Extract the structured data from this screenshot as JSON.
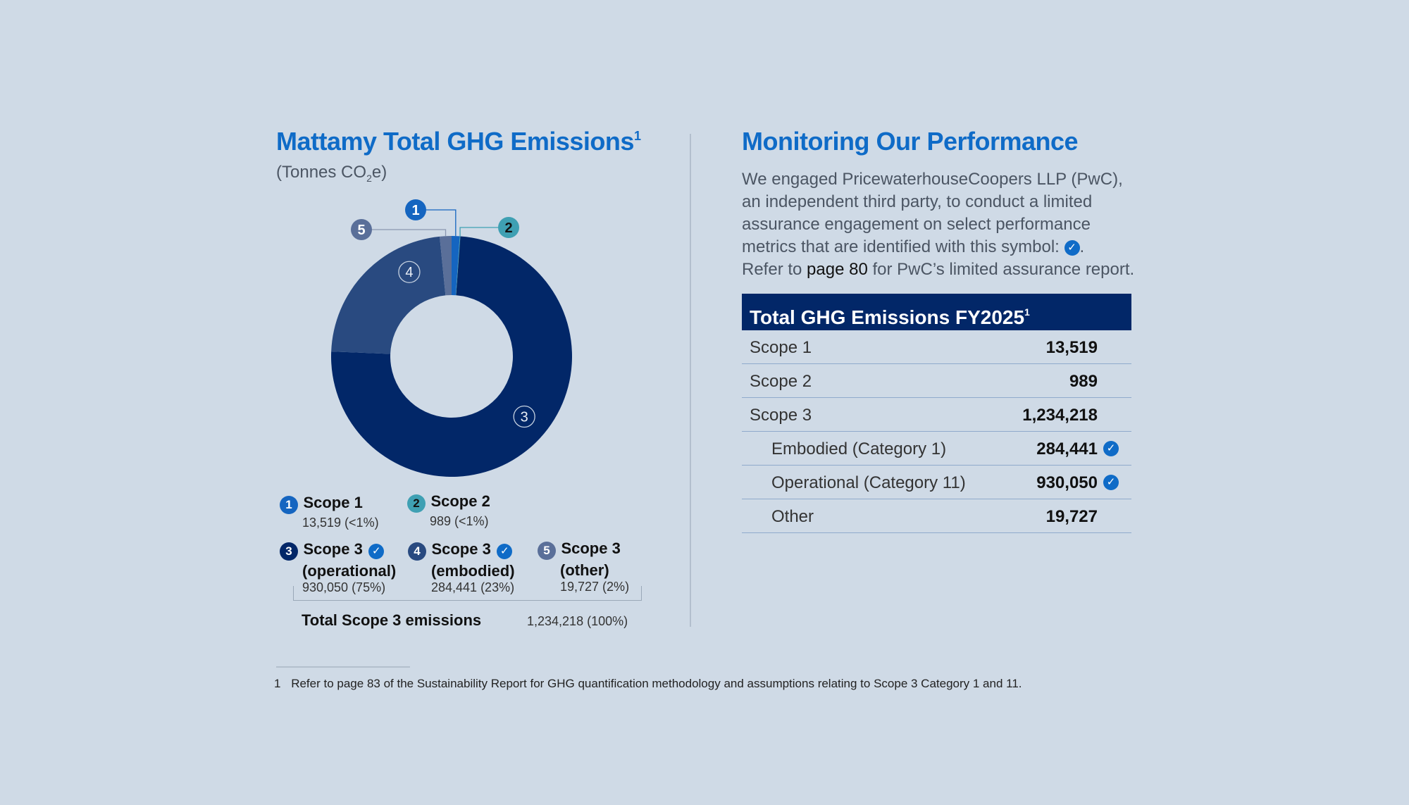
{
  "left": {
    "title": "Mattamy Total GHG Emissions",
    "title_sup": "1",
    "subtitle_pre": "(Tonnes CO",
    "subtitle_sub": "2",
    "subtitle_post": "e)",
    "legend": [
      {
        "num": "1",
        "label": "Scope 1",
        "value": "13,519 (<1%)"
      },
      {
        "num": "2",
        "label": "Scope 2",
        "value": "989 (<1%)"
      },
      {
        "num": "3",
        "label_line1": "Scope 3",
        "label_line2": "(operational)",
        "value": "930,050 (75%)"
      },
      {
        "num": "4",
        "label_line1": "Scope 3",
        "label_line2": "(embodied)",
        "value": "284,441 (23%)"
      },
      {
        "num": "5",
        "label_line1": "Scope 3",
        "label_line2": "(other)",
        "value": "19,727 (2%)"
      }
    ],
    "total_label": "Total Scope 3 emissions",
    "total_value": "1,234,218 (100%)"
  },
  "right": {
    "title": "Monitoring Our Performance",
    "para_line1": "We engaged PricewaterhouseCoopers LLP (PwC),",
    "para_line2": "an independent third party, to conduct a limited",
    "para_line3": "assurance engagement on select performance",
    "para_line4": "metrics that are identified with this symbol:",
    "para_line4_end": ".",
    "para_line5_pre": "Refer to ",
    "para_line5_link": "page 80",
    "para_line5_post": " for PwC’s limited assurance report.",
    "table_title": "Total GHG Emissions FY2025",
    "table_title_sup": "1",
    "rows": [
      {
        "label": "Scope 1",
        "value": "13,519"
      },
      {
        "label": "Scope 2",
        "value": "989"
      },
      {
        "label": "Scope 3",
        "value": "1,234,218"
      },
      {
        "label": "Embodied (Category 1)",
        "value": "284,441"
      },
      {
        "label": "Operational (Category 11)",
        "value": "930,050"
      },
      {
        "label": "Other",
        "value": "19,727"
      }
    ]
  },
  "footnote": {
    "num": "1",
    "text": "Refer to page 83 of the Sustainability Report for GHG quantification methodology and assumptions relating to Scope 3 Category 1 and 11."
  },
  "icons": {
    "check": "check-circle-icon"
  },
  "colors": {
    "scope1": "#1565c0",
    "scope2": "#3fa0b3",
    "scope3_operational": "#022768",
    "scope3_embodied": "#294a80",
    "scope3_other": "#5a6f99",
    "accent": "#0f6bc7",
    "background": "#cfdae6"
  },
  "chart_data": {
    "type": "pie",
    "title": "Mattamy Total GHG Emissions",
    "unit": "Tonnes CO2e",
    "series": [
      {
        "id": "1",
        "name": "Scope 1",
        "value": 13519,
        "color": "#1565c0"
      },
      {
        "id": "2",
        "name": "Scope 2",
        "value": 989,
        "color": "#3fa0b3"
      },
      {
        "id": "3",
        "name": "Scope 3 (operational)",
        "value": 930050,
        "color": "#022768"
      },
      {
        "id": "4",
        "name": "Scope 3 (embodied)",
        "value": 284441,
        "color": "#294a80"
      },
      {
        "id": "5",
        "name": "Scope 3 (other)",
        "value": 19727,
        "color": "#5a6f99"
      }
    ],
    "donut": true,
    "legend": "below"
  }
}
